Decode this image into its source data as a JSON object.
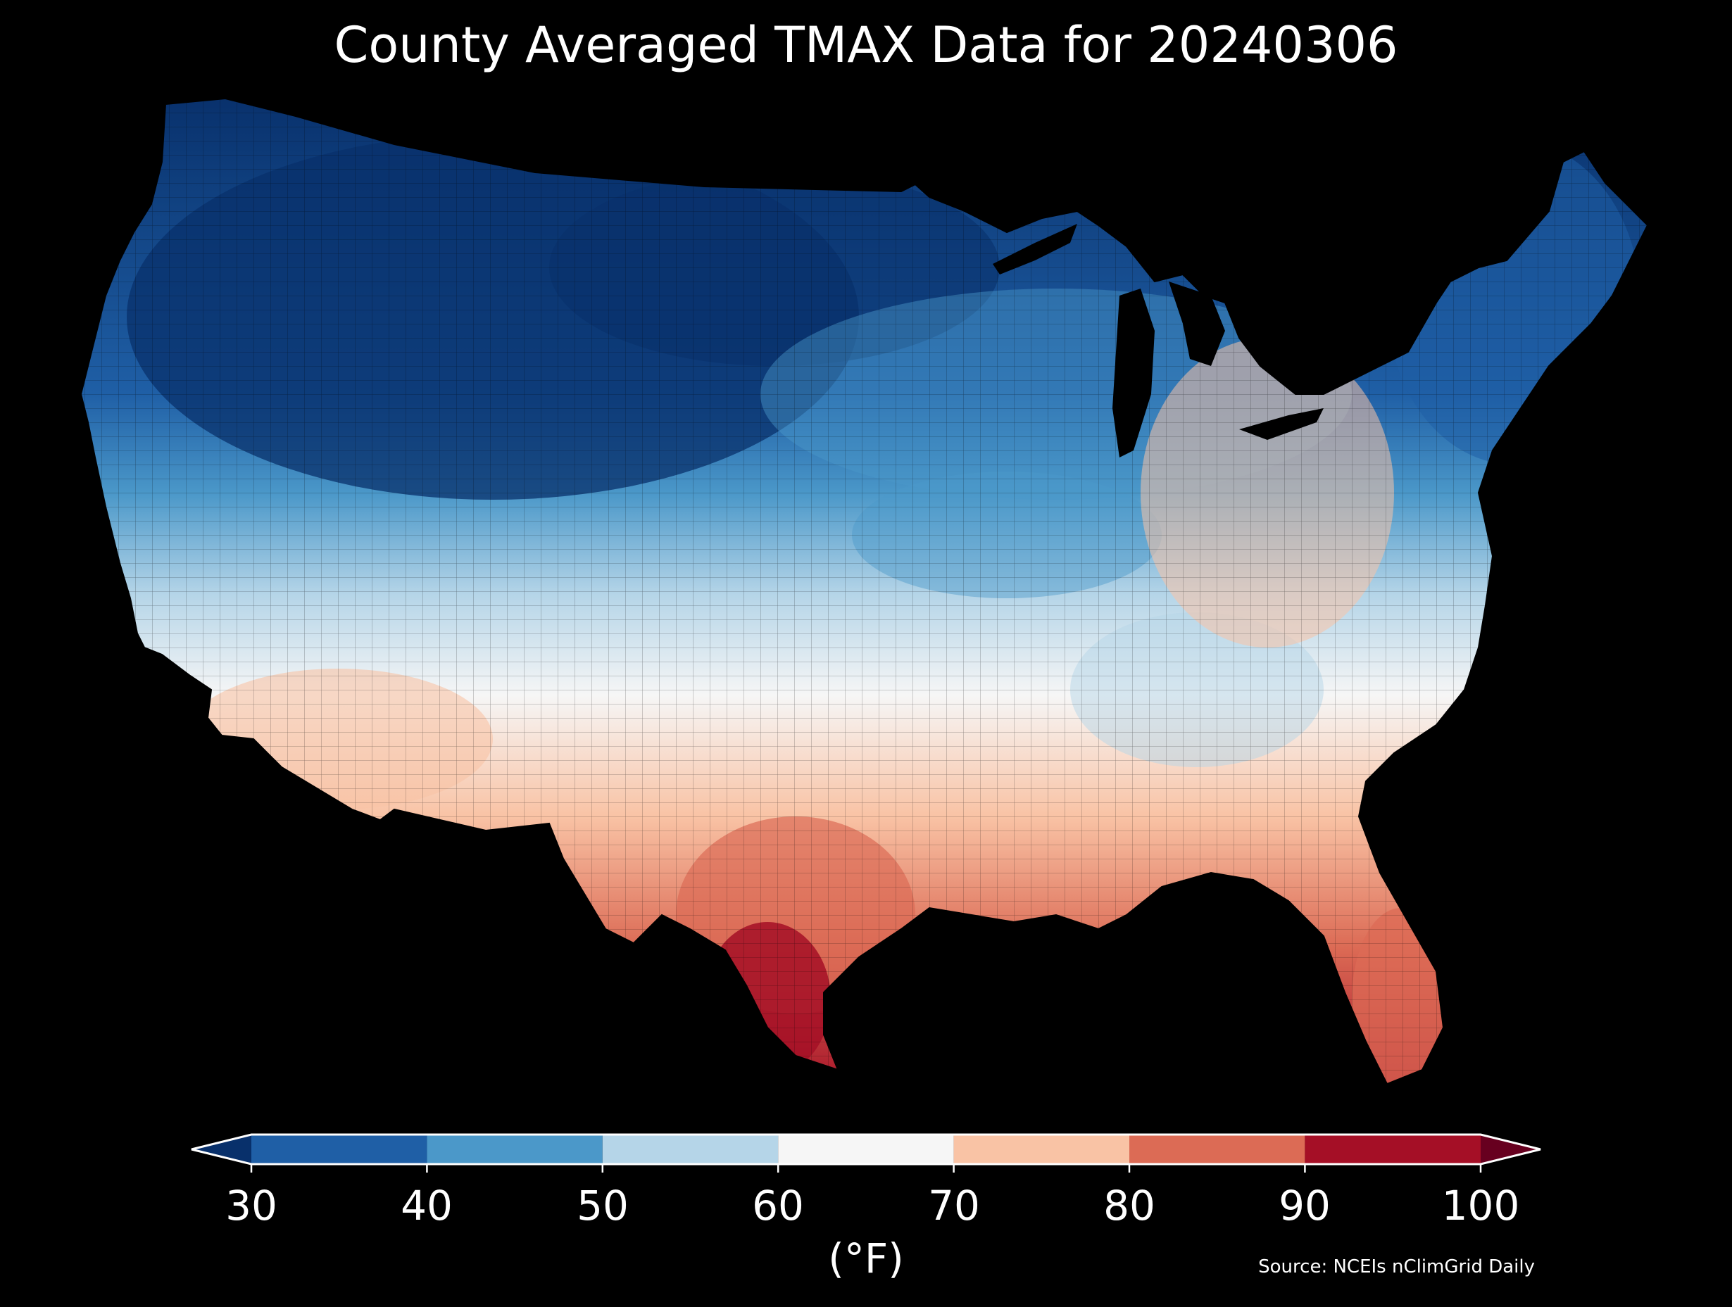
{
  "title": "County Averaged TMAX Data for 20240306",
  "map": {
    "region": "Contiguous United States",
    "variable": "TMAX",
    "fill": "county-level maximum temperature",
    "palette": {
      "lt30": "#08306b",
      "30_40": "#1f5fa6",
      "40_50": "#4b98c9",
      "50_60": "#b5d5e8",
      "60_70": "#f6f6f6",
      "70_80": "#f9c3a5",
      "80_90": "#dc6b55",
      "90_100": "#a50f26",
      "gt100": "#67001f"
    }
  },
  "colorbar": {
    "ticks": [
      "30",
      "40",
      "50",
      "60",
      "70",
      "80",
      "90",
      "100"
    ],
    "units": "(°F)",
    "extend": "both"
  },
  "source": "Source: NCEIs nClimGrid Daily"
}
